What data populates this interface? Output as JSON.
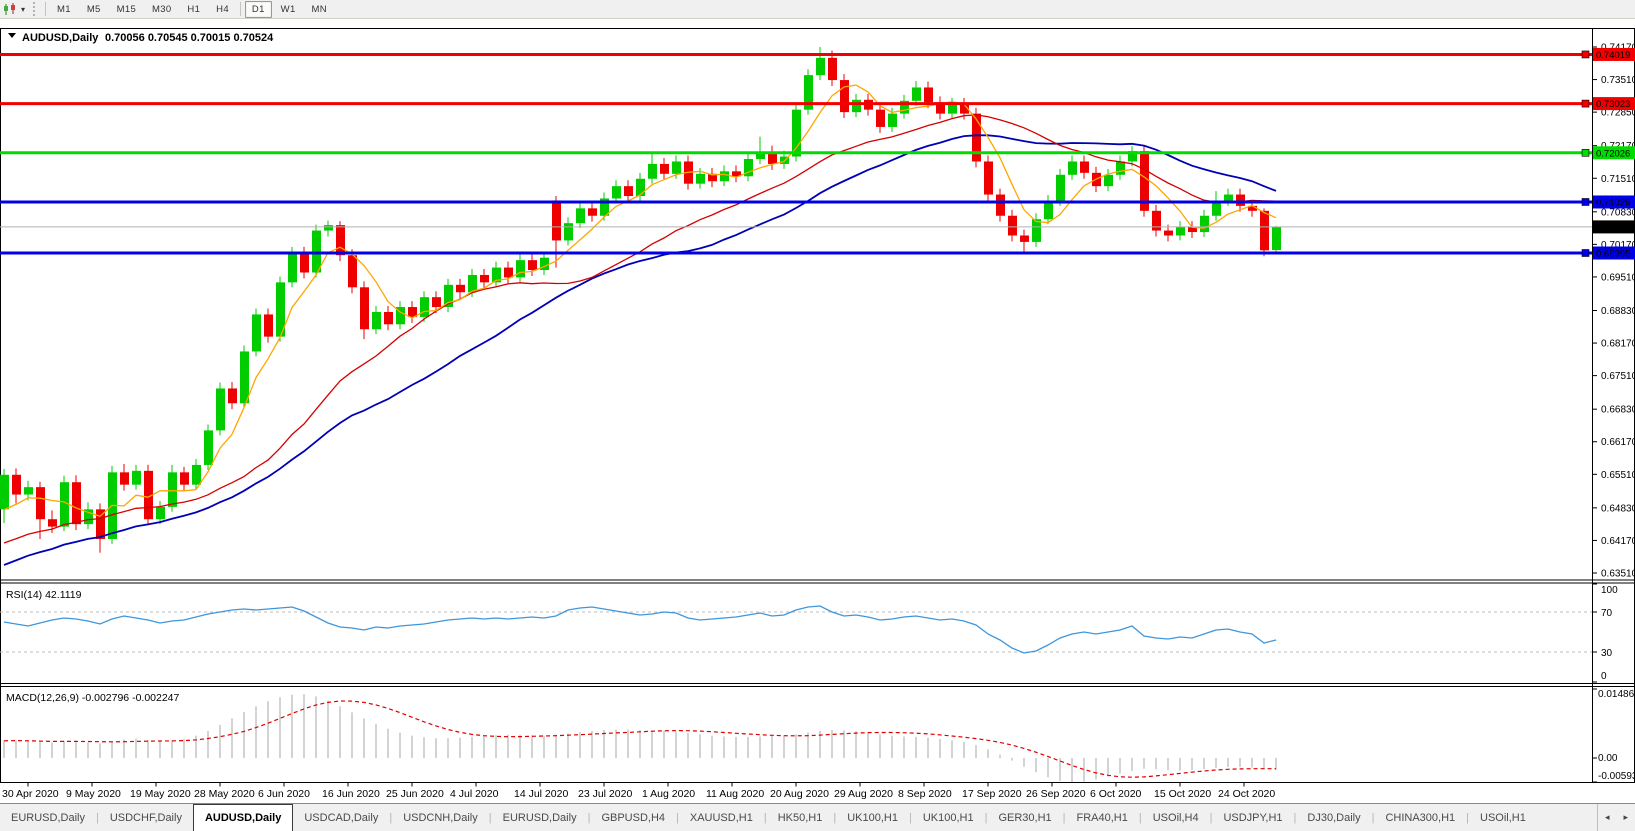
{
  "toolbar": {
    "chart_icon": "candlestick-chart-icon",
    "timeframes": [
      "M1",
      "M5",
      "M15",
      "M30",
      "H1",
      "H4",
      "D1",
      "W1",
      "MN"
    ],
    "active_timeframe": "D1"
  },
  "chart": {
    "symbol_title": "AUDUSD,Daily",
    "ohlc_line": "0.70056 0.70545 0.70015 0.70524",
    "price_axis_labels": [
      "0.74170",
      "0.73510",
      "0.72850",
      "0.72170",
      "0.71510",
      "0.70830",
      "0.70170",
      "0.69510",
      "0.68830",
      "0.68170",
      "0.67510",
      "0.66830",
      "0.66170",
      "0.65510",
      "0.64830",
      "0.64170",
      "0.63510"
    ],
    "horizontal_lines": [
      {
        "value": "0.74019",
        "price": 0.74019,
        "color": "#f20000",
        "name": "resistance-line-1"
      },
      {
        "value": "0.73023",
        "price": 0.73023,
        "color": "#f20000",
        "name": "resistance-line-2"
      },
      {
        "value": "0.72026",
        "price": 0.72026,
        "color": "#00dc00",
        "name": "pivot-line"
      },
      {
        "value": "0.71029",
        "price": 0.71029,
        "color": "#0000e8",
        "name": "support-line-1"
      },
      {
        "value": "0.69995",
        "price": 0.69995,
        "color": "#0000e8",
        "name": "support-line-2"
      }
    ],
    "current_price": {
      "value": "0.70524",
      "price": 0.70524,
      "badge_color": "#000000",
      "line_color": "#b0b0b0"
    }
  },
  "chart_data": {
    "type": "candlestick",
    "title": "AUDUSD,Daily",
    "x_dates": [
      "30 Apr 2020",
      "9 May 2020",
      "19 May 2020",
      "28 May 2020",
      "6 Jun 2020",
      "16 Jun 2020",
      "25 Jun 2020",
      "4 Jul 2020",
      "14 Jul 2020",
      "23 Jul 2020",
      "1 Aug 2020",
      "11 Aug 2020",
      "20 Aug 2020",
      "29 Aug 2020",
      "8 Sep 2020",
      "17 Sep 2020",
      "26 Sep 2020",
      "6 Oct 2020",
      "15 Oct 2020",
      "24 Oct 2020"
    ],
    "ylim": [
      0.6351,
      0.7417
    ],
    "up_color": "#00cc00",
    "down_color": "#ee0000",
    "ma_colors": {
      "fast": "#ffa600",
      "medium": "#d40000",
      "slow": "#0000b4"
    },
    "candles": [
      [
        0.648,
        0.6562,
        0.6452,
        0.655
      ],
      [
        0.655,
        0.6563,
        0.6492,
        0.651
      ],
      [
        0.651,
        0.6538,
        0.6498,
        0.6525
      ],
      [
        0.6525,
        0.6536,
        0.642,
        0.646
      ],
      [
        0.646,
        0.6478,
        0.6432,
        0.6445
      ],
      [
        0.6445,
        0.6548,
        0.6436,
        0.6535
      ],
      [
        0.6535,
        0.6549,
        0.6438,
        0.645
      ],
      [
        0.645,
        0.6494,
        0.644,
        0.648
      ],
      [
        0.648,
        0.6492,
        0.6392,
        0.642
      ],
      [
        0.642,
        0.6568,
        0.641,
        0.6555
      ],
      [
        0.6555,
        0.6572,
        0.6518,
        0.653
      ],
      [
        0.653,
        0.657,
        0.652,
        0.6558
      ],
      [
        0.6558,
        0.657,
        0.6448,
        0.646
      ],
      [
        0.646,
        0.6497,
        0.645,
        0.6485
      ],
      [
        0.6485,
        0.657,
        0.6475,
        0.6555
      ],
      [
        0.6555,
        0.6566,
        0.6518,
        0.653
      ],
      [
        0.653,
        0.6582,
        0.652,
        0.657
      ],
      [
        0.657,
        0.6652,
        0.656,
        0.664
      ],
      [
        0.664,
        0.6737,
        0.663,
        0.6725
      ],
      [
        0.6725,
        0.6738,
        0.6683,
        0.6695
      ],
      [
        0.6695,
        0.6812,
        0.6685,
        0.68
      ],
      [
        0.68,
        0.6887,
        0.679,
        0.6875
      ],
      [
        0.6875,
        0.6887,
        0.6818,
        0.683
      ],
      [
        0.683,
        0.6952,
        0.682,
        0.694
      ],
      [
        0.694,
        0.7012,
        0.693,
        0.7
      ],
      [
        0.7,
        0.7012,
        0.6948,
        0.696
      ],
      [
        0.696,
        0.7057,
        0.695,
        0.7045
      ],
      [
        0.7045,
        0.7065,
        0.7033,
        0.7056
      ],
      [
        0.7056,
        0.7064,
        0.6983,
        0.6995
      ],
      [
        0.6995,
        0.7007,
        0.6918,
        0.693
      ],
      [
        0.693,
        0.6942,
        0.6825,
        0.6845
      ],
      [
        0.6845,
        0.6892,
        0.6835,
        0.688
      ],
      [
        0.688,
        0.6892,
        0.6843,
        0.6855
      ],
      [
        0.6855,
        0.6902,
        0.6845,
        0.689
      ],
      [
        0.689,
        0.6902,
        0.6858,
        0.687
      ],
      [
        0.687,
        0.6922,
        0.686,
        0.691
      ],
      [
        0.691,
        0.6922,
        0.6878,
        0.689
      ],
      [
        0.689,
        0.6947,
        0.688,
        0.6935
      ],
      [
        0.6935,
        0.6947,
        0.6908,
        0.692
      ],
      [
        0.692,
        0.6967,
        0.691,
        0.6955
      ],
      [
        0.6955,
        0.6967,
        0.6928,
        0.694
      ],
      [
        0.694,
        0.6982,
        0.693,
        0.697
      ],
      [
        0.697,
        0.6982,
        0.6938,
        0.695
      ],
      [
        0.695,
        0.6997,
        0.694,
        0.6985
      ],
      [
        0.6985,
        0.6997,
        0.6953,
        0.6965
      ],
      [
        0.6965,
        0.7002,
        0.6955,
        0.699
      ],
      [
        0.7106,
        0.7115,
        0.697,
        0.7025
      ],
      [
        0.7025,
        0.7072,
        0.7015,
        0.706
      ],
      [
        0.706,
        0.7102,
        0.705,
        0.709
      ],
      [
        0.709,
        0.7102,
        0.7063,
        0.7075
      ],
      [
        0.7075,
        0.7122,
        0.7065,
        0.711
      ],
      [
        0.711,
        0.7147,
        0.71,
        0.7135
      ],
      [
        0.7135,
        0.7147,
        0.7103,
        0.7115
      ],
      [
        0.7115,
        0.7162,
        0.7105,
        0.715
      ],
      [
        0.715,
        0.72,
        0.714,
        0.718
      ],
      [
        0.718,
        0.7192,
        0.7148,
        0.716
      ],
      [
        0.716,
        0.7197,
        0.715,
        0.7185
      ],
      [
        0.7185,
        0.7197,
        0.7128,
        0.714
      ],
      [
        0.714,
        0.7172,
        0.713,
        0.716
      ],
      [
        0.716,
        0.7172,
        0.7133,
        0.7145
      ],
      [
        0.7145,
        0.7177,
        0.7135,
        0.7165
      ],
      [
        0.7165,
        0.7177,
        0.7143,
        0.7155
      ],
      [
        0.7155,
        0.7202,
        0.7145,
        0.719
      ],
      [
        0.719,
        0.7235,
        0.718,
        0.7205
      ],
      [
        0.7205,
        0.7217,
        0.7168,
        0.718
      ],
      [
        0.718,
        0.7207,
        0.717,
        0.7195
      ],
      [
        0.7195,
        0.7302,
        0.7185,
        0.729
      ],
      [
        0.729,
        0.7372,
        0.728,
        0.736
      ],
      [
        0.736,
        0.7417,
        0.735,
        0.7395
      ],
      [
        0.7395,
        0.741,
        0.7338,
        0.735
      ],
      [
        0.735,
        0.7362,
        0.7273,
        0.7285
      ],
      [
        0.7285,
        0.7322,
        0.7275,
        0.731
      ],
      [
        0.731,
        0.7322,
        0.7278,
        0.729
      ],
      [
        0.729,
        0.7302,
        0.7243,
        0.7255
      ],
      [
        0.7255,
        0.7294,
        0.7245,
        0.7282
      ],
      [
        0.7282,
        0.732,
        0.7272,
        0.7308
      ],
      [
        0.7308,
        0.7348,
        0.7298,
        0.7335
      ],
      [
        0.7335,
        0.7347,
        0.7293,
        0.7305
      ],
      [
        0.7305,
        0.7317,
        0.727,
        0.7282
      ],
      [
        0.7282,
        0.7314,
        0.7272,
        0.7302
      ],
      [
        0.7302,
        0.7314,
        0.727,
        0.7282
      ],
      [
        0.7282,
        0.7294,
        0.7173,
        0.7185
      ],
      [
        0.7185,
        0.7197,
        0.7106,
        0.7118
      ],
      [
        0.7118,
        0.713,
        0.7063,
        0.7075
      ],
      [
        0.7075,
        0.7087,
        0.7023,
        0.7035
      ],
      [
        0.7035,
        0.7047,
        0.6999,
        0.7022
      ],
      [
        0.7022,
        0.708,
        0.7012,
        0.7068
      ],
      [
        0.7068,
        0.7117,
        0.7058,
        0.7105
      ],
      [
        0.7105,
        0.717,
        0.7095,
        0.7158
      ],
      [
        0.7158,
        0.7197,
        0.7148,
        0.7185
      ],
      [
        0.7185,
        0.7197,
        0.715,
        0.7162
      ],
      [
        0.7162,
        0.7174,
        0.7123,
        0.7135
      ],
      [
        0.7135,
        0.717,
        0.7125,
        0.7158
      ],
      [
        0.7158,
        0.7197,
        0.7148,
        0.7185
      ],
      [
        0.7185,
        0.7216,
        0.7175,
        0.7206
      ],
      [
        0.7206,
        0.7218,
        0.7073,
        0.7085
      ],
      [
        0.7085,
        0.7097,
        0.7033,
        0.7045
      ],
      [
        0.7045,
        0.7057,
        0.7023,
        0.7035
      ],
      [
        0.7035,
        0.7064,
        0.7025,
        0.7052
      ],
      [
        0.7052,
        0.7064,
        0.703,
        0.7042
      ],
      [
        0.7042,
        0.7087,
        0.7032,
        0.7075
      ],
      [
        0.7075,
        0.7125,
        0.7065,
        0.7105
      ],
      [
        0.7105,
        0.713,
        0.7095,
        0.7118
      ],
      [
        0.7118,
        0.713,
        0.7083,
        0.7095
      ],
      [
        0.7095,
        0.7107,
        0.7073,
        0.7085
      ],
      [
        0.7085,
        0.709,
        0.6993,
        0.7005
      ],
      [
        0.70056,
        0.70545,
        0.70015,
        0.70524
      ]
    ],
    "rsi": {
      "label": "RSI(14)",
      "value": "42.1119",
      "line_color": "#3e96dc",
      "axis_labels": [
        "100",
        "70",
        "30",
        "0"
      ],
      "levels": [
        70,
        30
      ],
      "values": [
        60,
        58,
        56,
        59,
        62,
        64,
        63,
        61,
        58,
        63,
        66,
        64,
        62,
        59,
        61,
        62,
        65,
        68,
        70,
        72,
        73,
        72,
        73,
        74,
        75,
        71,
        65,
        59,
        55,
        54,
        52,
        55,
        54,
        56,
        57,
        58,
        60,
        62,
        63,
        64,
        63,
        64,
        63,
        64,
        65,
        64,
        66,
        72,
        74,
        75,
        73,
        71,
        69,
        67,
        68,
        70,
        69,
        64,
        62,
        63,
        64,
        65,
        67,
        69,
        66,
        67,
        72,
        75,
        76,
        70,
        66,
        67,
        65,
        62,
        63,
        65,
        66,
        64,
        62,
        63,
        61,
        57,
        48,
        42,
        34,
        29,
        31,
        37,
        44,
        48,
        50,
        48,
        50,
        52,
        56,
        46,
        44,
        43,
        45,
        44,
        48,
        52,
        53,
        50,
        48,
        39,
        42
      ]
    },
    "macd": {
      "label": "MACD(12,26,9)",
      "main_value": "-0.002796",
      "signal_value": "-0.002247",
      "bar_color": "#c0c0c0",
      "signal_color": "#e00000",
      "axis_labels": [
        "0.014861",
        "0.00",
        "-0.00593"
      ],
      "main": [
        0.004,
        0.0041,
        0.0039,
        0.0037,
        0.0036,
        0.0039,
        0.0038,
        0.0036,
        0.0034,
        0.0039,
        0.0043,
        0.0045,
        0.0042,
        0.0039,
        0.0041,
        0.0044,
        0.0052,
        0.0063,
        0.0077,
        0.0092,
        0.0107,
        0.012,
        0.0132,
        0.0141,
        0.0147,
        0.0148,
        0.0143,
        0.0133,
        0.012,
        0.0106,
        0.0092,
        0.0079,
        0.0068,
        0.0059,
        0.0052,
        0.0048,
        0.0046,
        0.0046,
        0.0047,
        0.0049,
        0.0051,
        0.0053,
        0.0054,
        0.0054,
        0.0053,
        0.0052,
        0.0054,
        0.0057,
        0.006,
        0.0063,
        0.0065,
        0.0066,
        0.0066,
        0.0065,
        0.0064,
        0.0063,
        0.0061,
        0.0058,
        0.0055,
        0.0052,
        0.005,
        0.0049,
        0.0049,
        0.005,
        0.0051,
        0.0052,
        0.0055,
        0.0059,
        0.0063,
        0.0065,
        0.0064,
        0.0062,
        0.0059,
        0.0055,
        0.0052,
        0.005,
        0.0049,
        0.0047,
        0.0044,
        0.0041,
        0.0037,
        0.003,
        0.002,
        0.0008,
        -0.0006,
        -0.002,
        -0.0033,
        -0.0045,
        -0.0053,
        -0.0057,
        -0.0055,
        -0.005,
        -0.0043,
        -0.0036,
        -0.003,
        -0.0025,
        -0.0026,
        -0.0028,
        -0.0029,
        -0.0028,
        -0.0026,
        -0.0023,
        -0.0021,
        -0.0021,
        -0.0022,
        -0.0026,
        -0.0028
      ]
    }
  },
  "tabs": {
    "items": [
      {
        "label": "EURUSD,Daily",
        "active": false
      },
      {
        "label": "USDCHF,Daily",
        "active": false
      },
      {
        "label": "AUDUSD,Daily",
        "active": true
      },
      {
        "label": "USDCAD,Daily",
        "active": false
      },
      {
        "label": "USDCNH,Daily",
        "active": false
      },
      {
        "label": "EURUSD,Daily",
        "active": false
      },
      {
        "label": "GBPUSD,H4",
        "active": false
      },
      {
        "label": "XAUUSD,H1",
        "active": false
      },
      {
        "label": "HK50,H1",
        "active": false
      },
      {
        "label": "UK100,H1",
        "active": false
      },
      {
        "label": "UK100,H1",
        "active": false
      },
      {
        "label": "GER30,H1",
        "active": false
      },
      {
        "label": "FRA40,H1",
        "active": false
      },
      {
        "label": "USOil,H4",
        "active": false
      },
      {
        "label": "USDJPY,H1",
        "active": false
      },
      {
        "label": "DJ30,Daily",
        "active": false
      },
      {
        "label": "CHINA300,H1",
        "active": false
      },
      {
        "label": "USOil,H1",
        "active": false
      }
    ],
    "scroll_left_icon": "◂",
    "scroll_right_icon": "▸"
  }
}
